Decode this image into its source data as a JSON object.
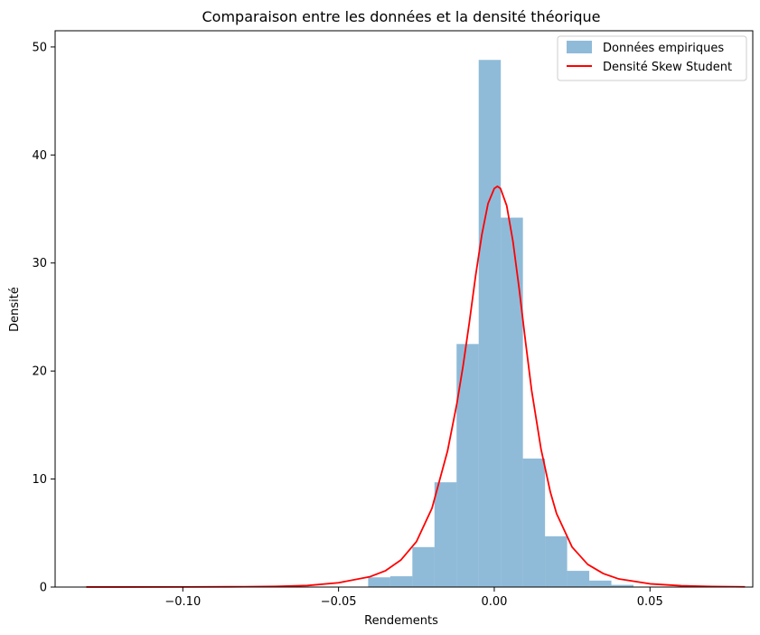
{
  "chart_data": {
    "type": "bar",
    "title": "Comparaison entre les données et la densité théorique",
    "xlabel": "Rendements",
    "ylabel": "Densité",
    "xlim": [
      -0.141,
      0.083
    ],
    "ylim": [
      0,
      51.5
    ],
    "xticks": [
      -0.1,
      -0.05,
      0.0,
      0.05
    ],
    "xtick_labels": [
      "−0.10",
      "−0.05",
      "0.00",
      "0.05"
    ],
    "yticks": [
      0,
      10,
      20,
      30,
      40,
      50
    ],
    "ytick_labels": [
      "0",
      "10",
      "20",
      "30",
      "40",
      "50"
    ],
    "grid": false,
    "legend_position": "top-right",
    "histogram": {
      "name": "Données empiriques",
      "color": "#1f77b4",
      "opacity": 0.5,
      "bin_edges": [
        -0.0405,
        -0.0334,
        -0.0263,
        -0.0192,
        -0.0121,
        -0.005,
        0.0021,
        0.0092,
        0.0163,
        0.0234,
        0.0305,
        0.0376,
        0.0447
      ],
      "values": [
        0.9,
        1.0,
        3.7,
        9.7,
        22.5,
        48.8,
        34.2,
        11.9,
        4.7,
        1.5,
        0.6,
        0.2
      ]
    },
    "density": {
      "name": "Densité Skew Student",
      "color": "#ff0000",
      "x_range": [
        -0.131,
        0.0805
      ],
      "peak_x": 0.001,
      "peak_y": 37.1,
      "points": [
        [
          -0.131,
          0.003
        ],
        [
          -0.1,
          0.01
        ],
        [
          -0.08,
          0.03
        ],
        [
          -0.07,
          0.06
        ],
        [
          -0.06,
          0.14
        ],
        [
          -0.05,
          0.4
        ],
        [
          -0.04,
          0.95
        ],
        [
          -0.035,
          1.5
        ],
        [
          -0.03,
          2.5
        ],
        [
          -0.025,
          4.2
        ],
        [
          -0.02,
          7.3
        ],
        [
          -0.015,
          12.6
        ],
        [
          -0.012,
          17.0
        ],
        [
          -0.01,
          20.5
        ],
        [
          -0.008,
          24.5
        ],
        [
          -0.006,
          28.8
        ],
        [
          -0.004,
          32.6
        ],
        [
          -0.002,
          35.5
        ],
        [
          0.0,
          36.9
        ],
        [
          0.001,
          37.1
        ],
        [
          0.002,
          36.9
        ],
        [
          0.004,
          35.3
        ],
        [
          0.006,
          32.0
        ],
        [
          0.008,
          27.6
        ],
        [
          0.01,
          22.8
        ],
        [
          0.012,
          18.2
        ],
        [
          0.015,
          12.8
        ],
        [
          0.018,
          8.8
        ],
        [
          0.02,
          6.8
        ],
        [
          0.025,
          3.7
        ],
        [
          0.03,
          2.1
        ],
        [
          0.035,
          1.25
        ],
        [
          0.04,
          0.75
        ],
        [
          0.05,
          0.3
        ],
        [
          0.06,
          0.12
        ],
        [
          0.07,
          0.05
        ],
        [
          0.0805,
          0.02
        ]
      ]
    }
  }
}
